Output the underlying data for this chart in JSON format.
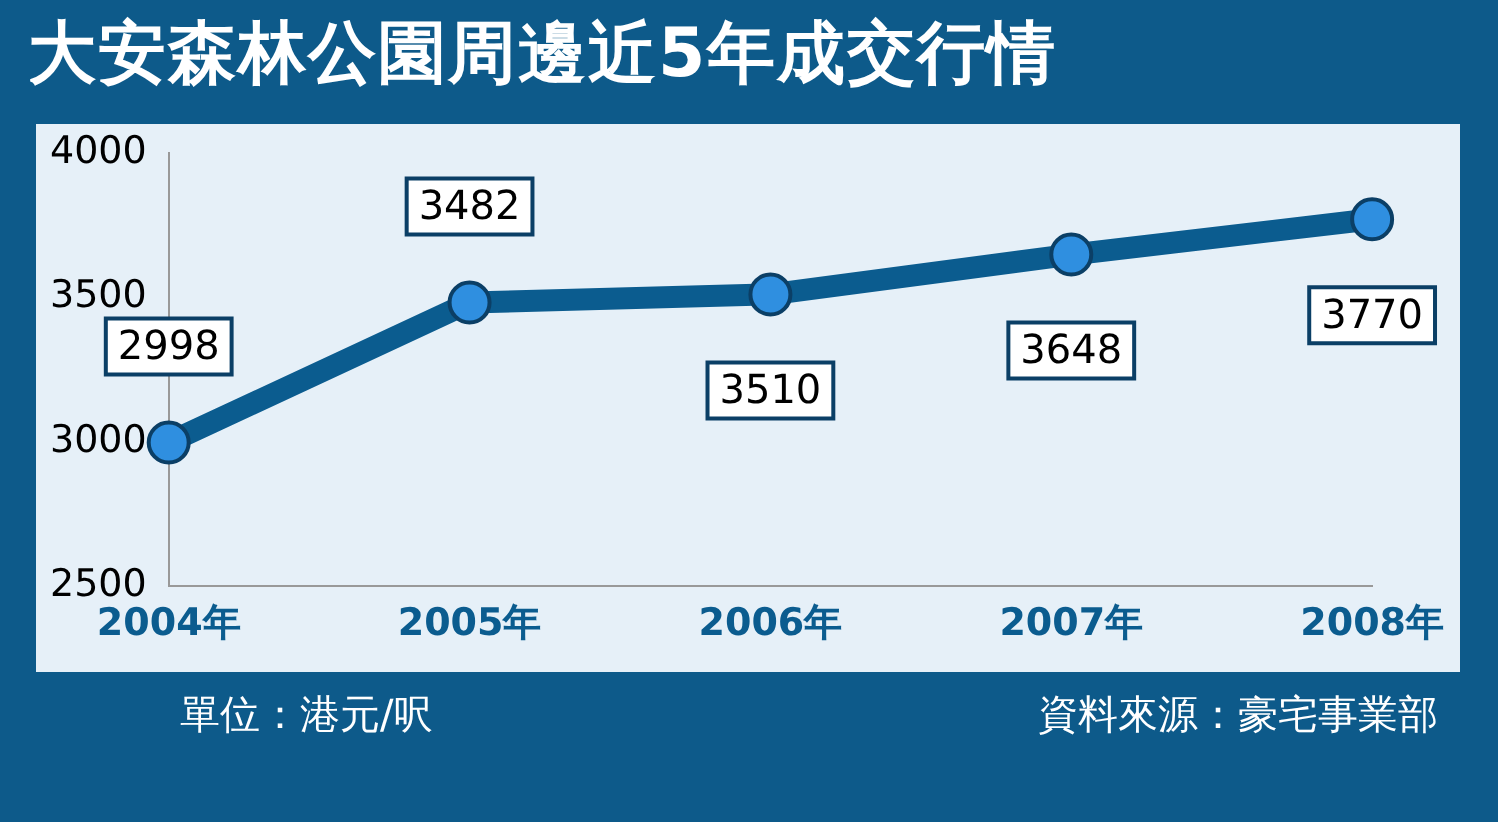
{
  "chart_data": {
    "type": "line",
    "title": "大安森林公園周邊近5年成交行情",
    "categories": [
      "2004年",
      "2005年",
      "2006年",
      "2007年",
      "2008年"
    ],
    "series": [
      {
        "color": "#0b5c8f",
        "values": [
          2998,
          3482,
          3510,
          3648,
          3770
        ]
      }
    ],
    "ylim": [
      2500,
      4000
    ],
    "yticks": [
      2500,
      3000,
      3500,
      4000
    ],
    "grid": false,
    "legend": false,
    "marker": "circle",
    "data_labels": true,
    "annotations": [
      "單位：港元/呎",
      "資料來源：豪宅事業部"
    ]
  }
}
